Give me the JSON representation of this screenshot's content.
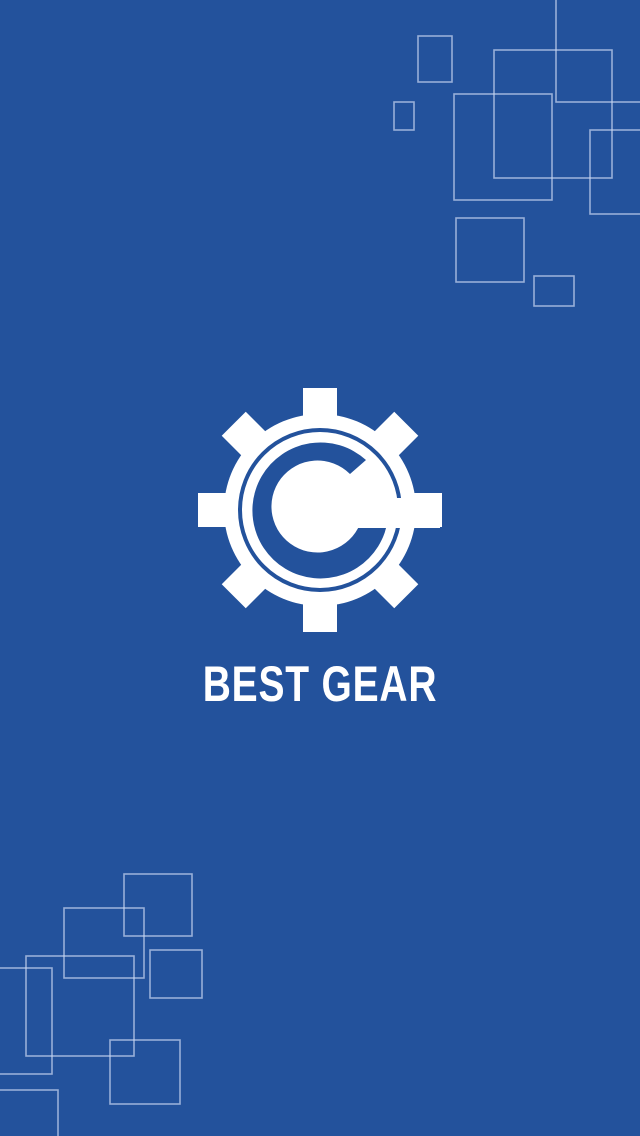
{
  "splash": {
    "brand_name": "BEST GEAR",
    "logo_icon": "gear-g-logo-icon",
    "logo_letter": "G"
  },
  "colors": {
    "background": "#23529C",
    "logo_fill": "#FFFFFF",
    "brand_text": "#FFFFFF",
    "decoration_stroke": "#C9D7F2",
    "logo_ring": "#23529C"
  }
}
